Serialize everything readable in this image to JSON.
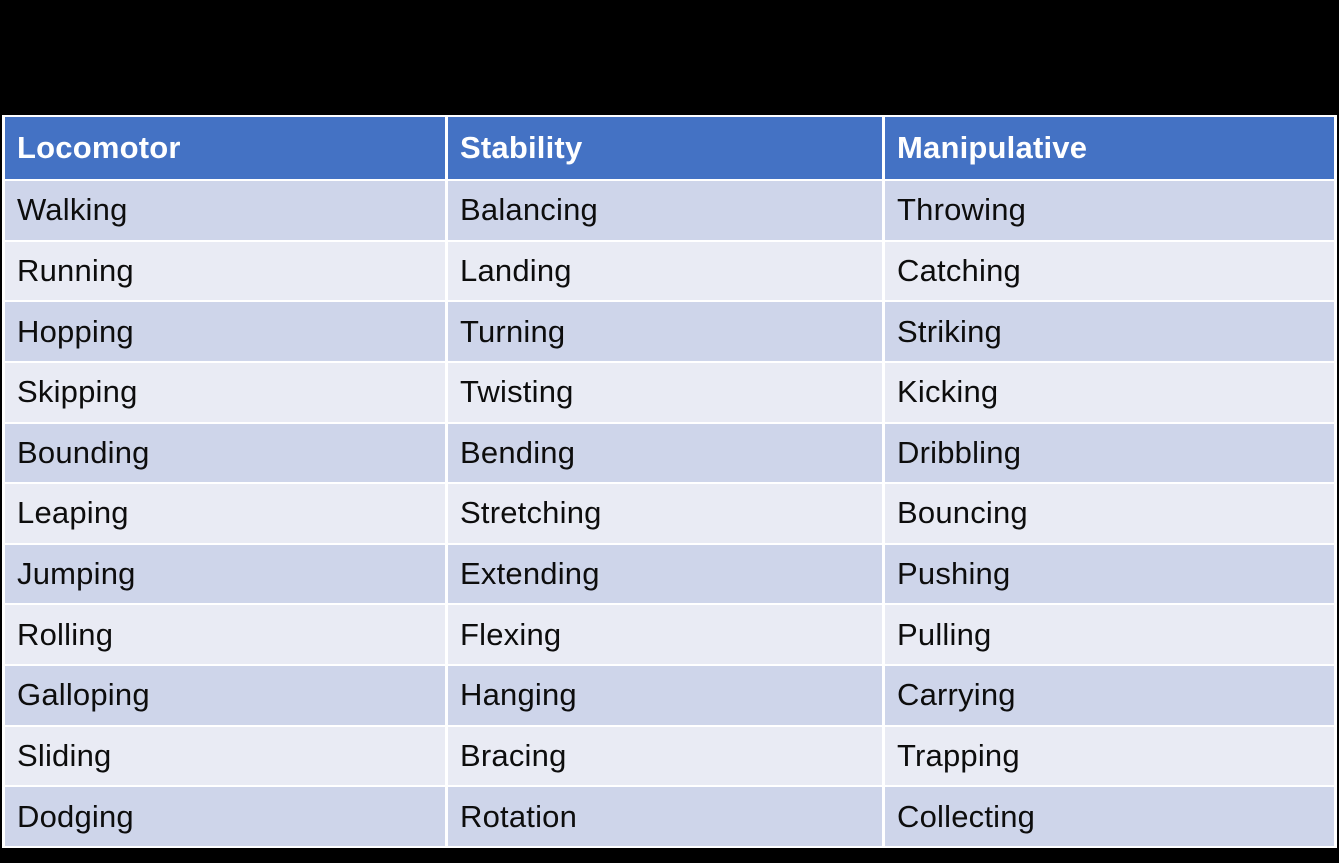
{
  "table": {
    "columns": [
      {
        "header": "Locomotor",
        "items": [
          "Walking",
          "Running",
          "Hopping",
          "Skipping",
          "Bounding",
          "Leaping",
          "Jumping",
          "Rolling",
          "Galloping",
          "Sliding",
          "Dodging"
        ]
      },
      {
        "header": "Stability",
        "items": [
          "Balancing",
          "Landing",
          "Turning",
          "Twisting",
          "Bending",
          "Stretching",
          "Extending",
          "Flexing",
          "Hanging",
          "Bracing",
          "Rotation"
        ]
      },
      {
        "header": "Manipulative",
        "items": [
          "Throwing",
          "Catching",
          "Striking",
          "Kicking",
          "Dribbling",
          "Bouncing",
          "Pushing",
          "Pulling",
          "Carrying",
          "Trapping",
          "Collecting"
        ]
      }
    ]
  },
  "colors": {
    "background": "#000000",
    "header_bg": "#4472C4",
    "header_text": "#FFFFFF",
    "row_band_dark": "#CED5EA",
    "row_band_light": "#E9EBF4",
    "grid_line": "#FFFFFF",
    "body_text": "#0D0D0D"
  }
}
